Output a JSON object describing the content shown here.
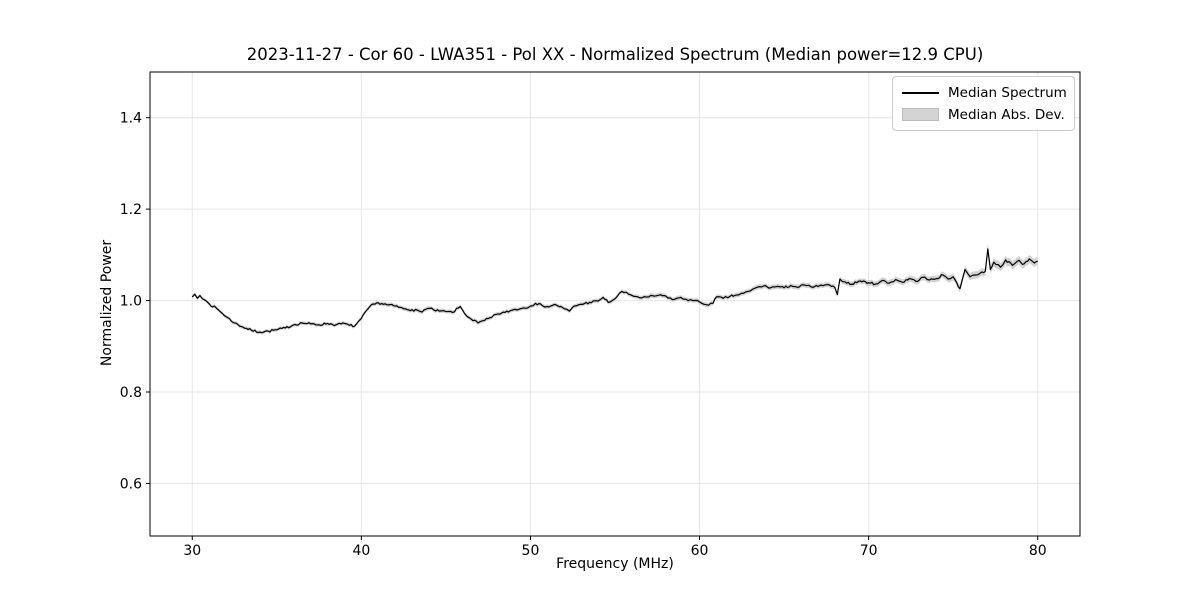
{
  "figure": {
    "title": "2023-11-27 - Cor 60 - LWA351 - Pol XX - Normalized Spectrum (Median power=12.9 CPU)",
    "xlabel": "Frequency (MHz)",
    "ylabel": "Normalized Power",
    "background_color": "#ffffff"
  },
  "legend": {
    "items": [
      {
        "label": "Median Spectrum",
        "type": "line",
        "color": "#000000"
      },
      {
        "label": "Median Abs. Dev.",
        "type": "patch",
        "fill": "#d4d4d4",
        "edge": "#bcbcbc"
      }
    ]
  },
  "chart_data": {
    "type": "line",
    "title": "2023-11-27 - Cor 60 - LWA351 - Pol XX - Normalized Spectrum (Median power=12.9 CPU)",
    "xlabel": "Frequency (MHz)",
    "ylabel": "Normalized Power",
    "xlim": [
      27.5,
      82.5
    ],
    "ylim": [
      0.485,
      1.5
    ],
    "xticks": [
      30,
      40,
      50,
      60,
      70,
      80
    ],
    "yticks": [
      0.6,
      0.8,
      1.0,
      1.2,
      1.4
    ],
    "grid": true,
    "grid_color": "#e6e6e6",
    "frame_color": "#000000",
    "line_color": "#000000",
    "band_color": "#d0d0d0",
    "legend_position": "upper right",
    "noise_amplitude": 0.0025,
    "noise_step_mhz": 0.1,
    "noise_seed": 7,
    "series": [
      {
        "name": "Median Spectrum",
        "band_name": "Median Abs. Dev.",
        "points_format": [
          "frequency_mhz",
          "normalized_power",
          "median_abs_dev"
        ],
        "points": [
          [
            30.0,
            1.008,
            0.004
          ],
          [
            30.15,
            1.014,
            0.004
          ],
          [
            30.3,
            1.005,
            0.004
          ],
          [
            30.45,
            1.011,
            0.004
          ],
          [
            30.6,
            1.004,
            0.004
          ],
          [
            30.8,
            1.0,
            0.004
          ],
          [
            31.0,
            0.993,
            0.004
          ],
          [
            31.5,
            0.981,
            0.004
          ],
          [
            32.0,
            0.965,
            0.004
          ],
          [
            32.5,
            0.951,
            0.004
          ],
          [
            33.0,
            0.942,
            0.004
          ],
          [
            33.5,
            0.935,
            0.004
          ],
          [
            34.0,
            0.931,
            0.004
          ],
          [
            34.5,
            0.933,
            0.004
          ],
          [
            35.0,
            0.936,
            0.004
          ],
          [
            35.5,
            0.94,
            0.004
          ],
          [
            36.0,
            0.947,
            0.004
          ],
          [
            36.5,
            0.951,
            0.004
          ],
          [
            37.0,
            0.949,
            0.004
          ],
          [
            37.5,
            0.947,
            0.004
          ],
          [
            38.0,
            0.95,
            0.004
          ],
          [
            38.5,
            0.947,
            0.004
          ],
          [
            39.0,
            0.95,
            0.004
          ],
          [
            39.3,
            0.946,
            0.004
          ],
          [
            39.6,
            0.944,
            0.004
          ],
          [
            40.0,
            0.961,
            0.0045
          ],
          [
            40.5,
            0.987,
            0.0045
          ],
          [
            41.0,
            0.995,
            0.0045
          ],
          [
            41.5,
            0.991,
            0.0045
          ],
          [
            42.0,
            0.988,
            0.0045
          ],
          [
            42.5,
            0.982,
            0.0045
          ],
          [
            43.0,
            0.98,
            0.0045
          ],
          [
            43.5,
            0.976,
            0.0045
          ],
          [
            44.0,
            0.983,
            0.0045
          ],
          [
            44.3,
            0.979,
            0.0045
          ],
          [
            44.6,
            0.977,
            0.0045
          ],
          [
            45.0,
            0.976,
            0.0045
          ],
          [
            45.4,
            0.974,
            0.0045
          ],
          [
            45.85,
            0.987,
            0.0045
          ],
          [
            46.1,
            0.972,
            0.0045
          ],
          [
            46.4,
            0.962,
            0.0045
          ],
          [
            46.9,
            0.951,
            0.0045
          ],
          [
            47.3,
            0.957,
            0.0045
          ],
          [
            47.7,
            0.963,
            0.0045
          ],
          [
            48.0,
            0.97,
            0.0045
          ],
          [
            48.5,
            0.974,
            0.0045
          ],
          [
            49.0,
            0.98,
            0.0045
          ],
          [
            49.5,
            0.983,
            0.0045
          ],
          [
            50.0,
            0.988,
            0.0045
          ],
          [
            50.3,
            0.994,
            0.0045
          ],
          [
            50.7,
            0.989,
            0.0045
          ],
          [
            51.0,
            0.987,
            0.0045
          ],
          [
            51.5,
            0.991,
            0.0045
          ],
          [
            52.0,
            0.982,
            0.0045
          ],
          [
            52.3,
            0.977,
            0.0045
          ],
          [
            52.6,
            0.988,
            0.0045
          ],
          [
            53.0,
            0.992,
            0.0045
          ],
          [
            53.5,
            0.996,
            0.0045
          ],
          [
            54.0,
            0.999,
            0.0045
          ],
          [
            54.3,
            1.007,
            0.0045
          ],
          [
            54.6,
            0.996,
            0.0045
          ],
          [
            55.0,
            1.004,
            0.0045
          ],
          [
            55.4,
            1.02,
            0.0045
          ],
          [
            55.8,
            1.014,
            0.0045
          ],
          [
            56.2,
            1.009,
            0.0045
          ],
          [
            56.6,
            1.006,
            0.0045
          ],
          [
            57.0,
            1.008,
            0.005
          ],
          [
            57.5,
            1.011,
            0.005
          ],
          [
            58.0,
            1.01,
            0.005
          ],
          [
            58.4,
            1.002,
            0.005
          ],
          [
            58.8,
            1.006,
            0.005
          ],
          [
            59.2,
            1.003,
            0.005
          ],
          [
            59.6,
            1.0,
            0.005
          ],
          [
            60.0,
            0.997,
            0.005
          ],
          [
            60.4,
            0.991,
            0.005
          ],
          [
            60.8,
            0.994,
            0.005
          ],
          [
            61.0,
            1.008,
            0.005
          ],
          [
            61.4,
            1.005,
            0.005
          ],
          [
            61.8,
            1.009,
            0.005
          ],
          [
            62.2,
            1.012,
            0.005
          ],
          [
            62.6,
            1.016,
            0.005
          ],
          [
            63.0,
            1.021,
            0.005
          ],
          [
            63.4,
            1.029,
            0.0055
          ],
          [
            63.8,
            1.032,
            0.0055
          ],
          [
            64.2,
            1.028,
            0.0055
          ],
          [
            64.6,
            1.031,
            0.0055
          ],
          [
            65.0,
            1.028,
            0.0055
          ],
          [
            65.4,
            1.033,
            0.0055
          ],
          [
            65.8,
            1.029,
            0.0055
          ],
          [
            66.2,
            1.034,
            0.0055
          ],
          [
            66.6,
            1.03,
            0.0055
          ],
          [
            67.0,
            1.031,
            0.0055
          ],
          [
            67.4,
            1.034,
            0.0055
          ],
          [
            67.8,
            1.031,
            0.0055
          ],
          [
            68.0,
            1.029,
            0.006
          ],
          [
            68.15,
            1.013,
            0.006
          ],
          [
            68.3,
            1.047,
            0.006
          ],
          [
            68.6,
            1.041,
            0.006
          ],
          [
            69.0,
            1.036,
            0.006
          ],
          [
            69.5,
            1.043,
            0.006
          ],
          [
            70.0,
            1.039,
            0.006
          ],
          [
            70.4,
            1.036,
            0.0065
          ],
          [
            70.8,
            1.044,
            0.0065
          ],
          [
            71.2,
            1.038,
            0.0065
          ],
          [
            71.6,
            1.046,
            0.0065
          ],
          [
            72.0,
            1.04,
            0.0065
          ],
          [
            72.4,
            1.048,
            0.0065
          ],
          [
            72.8,
            1.042,
            0.007
          ],
          [
            73.2,
            1.051,
            0.007
          ],
          [
            73.6,
            1.045,
            0.007
          ],
          [
            74.0,
            1.048,
            0.007
          ],
          [
            74.4,
            1.056,
            0.007
          ],
          [
            74.7,
            1.047,
            0.0075
          ],
          [
            75.0,
            1.052,
            0.0075
          ],
          [
            75.2,
            1.04,
            0.0075
          ],
          [
            75.4,
            1.026,
            0.0075
          ],
          [
            75.7,
            1.068,
            0.008
          ],
          [
            76.0,
            1.052,
            0.008
          ],
          [
            76.3,
            1.056,
            0.008
          ],
          [
            76.6,
            1.06,
            0.008
          ],
          [
            76.9,
            1.064,
            0.009
          ],
          [
            77.05,
            1.113,
            0.012
          ],
          [
            77.2,
            1.068,
            0.009
          ],
          [
            77.4,
            1.084,
            0.009
          ],
          [
            77.8,
            1.073,
            0.009
          ],
          [
            78.1,
            1.089,
            0.009
          ],
          [
            78.5,
            1.077,
            0.009
          ],
          [
            78.9,
            1.088,
            0.009
          ],
          [
            79.1,
            1.079,
            0.009
          ],
          [
            79.5,
            1.091,
            0.009
          ],
          [
            79.8,
            1.082,
            0.009
          ],
          [
            80.0,
            1.086,
            0.009
          ]
        ]
      }
    ]
  }
}
